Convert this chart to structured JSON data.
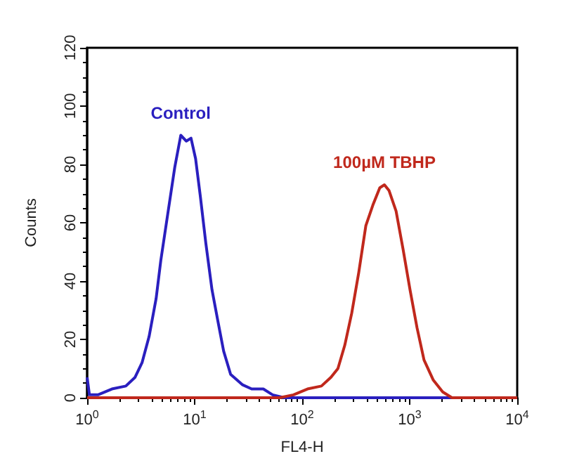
{
  "chart_data": {
    "type": "line",
    "xlabel": "FL4-H",
    "ylabel": "Counts",
    "log": "x",
    "grid": false,
    "legend": false,
    "marker": "none",
    "line_style": "solid",
    "xlim": [
      1,
      10000
    ],
    "xticks": [
      {
        "value": 1,
        "label": "10$^{0}$"
      },
      {
        "value": 10,
        "label": "10$^{1}$"
      },
      {
        "value": 100,
        "label": "10$^{2}$"
      },
      {
        "value": 1000,
        "label": "10$^{3}$"
      },
      {
        "value": 10000,
        "label": "10$^{4}$"
      }
    ],
    "ylim": [
      0,
      120
    ],
    "yticks": [
      0,
      20,
      40,
      60,
      80,
      100,
      120
    ],
    "series": [
      {
        "name": "Control",
        "color": "#2a1fbf",
        "x": [
          1,
          1.05,
          1.26,
          1.7,
          2.29,
          2.79,
          3.24,
          3.77,
          4.38,
          4.84,
          5.62,
          6.53,
          7.43,
          8.37,
          9.25,
          10.2,
          11.3,
          12.7,
          14.5,
          16.5,
          18.6,
          21.6,
          27.7,
          33.9,
          43.5,
          53.1,
          68.1,
          10000
        ],
        "values": [
          7,
          1,
          1,
          3,
          4,
          7,
          12,
          21,
          34,
          47,
          63,
          79,
          90,
          88,
          89,
          82,
          69,
          53,
          37,
          26,
          16,
          8,
          4.5,
          3,
          3,
          1,
          0,
          0
        ]
      },
      {
        "name": "100µM TBHP",
        "color": "#c0281c",
        "x": [
          1,
          61.6,
          83,
          112,
          151,
          185,
          215,
          249,
          289,
          336,
          391,
          454,
          527,
          582,
          643,
          747,
          867,
          1007,
          1170,
          1358,
          1660,
          2028,
          2472,
          10000
        ],
        "values": [
          0,
          0,
          1,
          3,
          4,
          7,
          10,
          18,
          29,
          43,
          59,
          66,
          72,
          73,
          71,
          64,
          51,
          37,
          24,
          13,
          6,
          2,
          0,
          0
        ]
      }
    ]
  }
}
